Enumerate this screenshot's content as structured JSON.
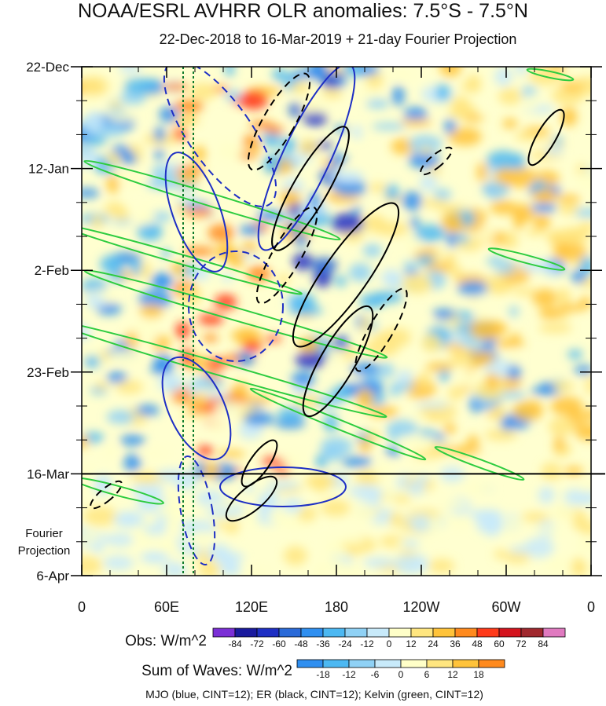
{
  "chart_data": {
    "type": "heatmap",
    "title": "NOAA/ESRL AVHRR OLR anomalies: 7.5°S - 7.5°N",
    "subtitle": "22-Dec-2018 to 16-Mar-2019 + 21-day Fourier Projection",
    "x_ticks": [
      "0",
      "60E",
      "120E",
      "180",
      "120W",
      "60W",
      "0"
    ],
    "y_ticks": [
      "22-Dec",
      "12-Jan",
      "2-Feb",
      "23-Feb",
      "16-Mar",
      "6-Apr"
    ],
    "projection_label": [
      "Fourier",
      "Projection"
    ],
    "obs_colorbar": {
      "title": "Obs: W/m^2",
      "ticks": [
        "-84",
        "-72",
        "-60",
        "-48",
        "-36",
        "-24",
        "-12",
        "0",
        "12",
        "24",
        "36",
        "48",
        "60",
        "72",
        "84"
      ],
      "colors": [
        "#7b2fd6",
        "#1a1a9e",
        "#1e2fc4",
        "#2a6ad8",
        "#2f8ff0",
        "#4cb8f2",
        "#8fd1f5",
        "#c8eafa",
        "#ffffc8",
        "#ffe680",
        "#ffc33a",
        "#ff8a1e",
        "#ff3a1a",
        "#d4141e",
        "#a0282e",
        "#e07ac0"
      ]
    },
    "waves_colorbar": {
      "title": "Sum of Waves: W/m^2",
      "ticks": [
        "-18",
        "-12",
        "-6",
        "0",
        "6",
        "12",
        "18"
      ],
      "colors": [
        "#2f8ff0",
        "#4cb8f2",
        "#8fd1f5",
        "#c8eafa",
        "#ffffc8",
        "#ffe680",
        "#ffc33a",
        "#ff8a1e"
      ]
    },
    "footer": "MJO (blue, CINT=12); ER (black, CINT=12); Kelvin (green, CINT=12)",
    "series": [
      {
        "name": "MJO",
        "color": "#1e2fc4"
      },
      {
        "name": "ER",
        "color": "#000000"
      },
      {
        "name": "Kelvin",
        "color": "#2ecc40"
      }
    ]
  }
}
